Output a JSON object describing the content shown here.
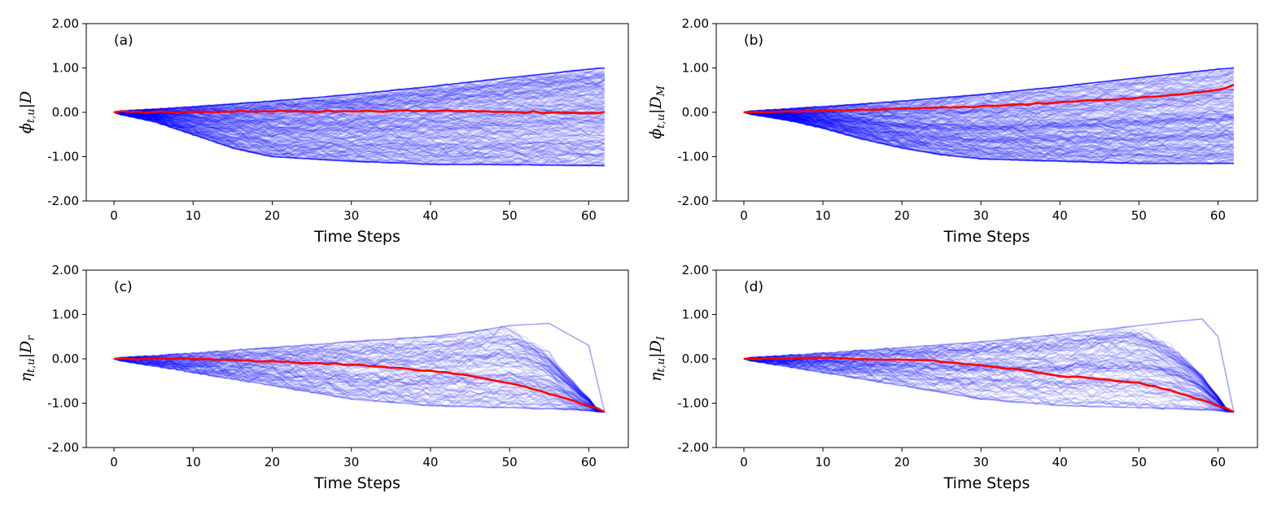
{
  "chart_data": [
    {
      "type": "line",
      "panel": "(a)",
      "xlabel": "Time Steps",
      "ylabel": {
        "symbol": "ϕ",
        "sub": "t,u",
        "given": "D",
        "given_sub": ""
      },
      "xlim": [
        -3.5,
        65
      ],
      "ylim": [
        -2,
        2
      ],
      "xticks": [
        "0",
        "10",
        "20",
        "30",
        "40",
        "50",
        "60"
      ],
      "yticks": [
        "2.00",
        "1.00",
        "0.00",
        "-1.00",
        "-2.00"
      ],
      "series": [
        {
          "name": "sample trajectories (blue band upper bound)",
          "color": "#0000ff",
          "x": [
            0,
            10,
            20,
            30,
            40,
            50,
            60,
            62
          ],
          "values": [
            0,
            0.12,
            0.25,
            0.4,
            0.58,
            0.78,
            0.97,
            1.0
          ]
        },
        {
          "name": "sample trajectories (blue band lower bound)",
          "color": "#0000ff",
          "x": [
            0,
            5,
            10,
            15,
            20,
            25,
            30,
            40,
            50,
            62
          ],
          "values": [
            0,
            -0.2,
            -0.5,
            -0.8,
            -1.0,
            -1.05,
            -1.1,
            -1.17,
            -1.18,
            -1.2
          ]
        },
        {
          "name": "mean",
          "color": "#ff0000",
          "x": [
            0,
            10,
            20,
            30,
            35,
            40,
            50,
            56,
            60,
            62
          ],
          "values": [
            0,
            0.01,
            0.02,
            0.02,
            0.03,
            0.03,
            0.02,
            -0.02,
            -0.03,
            0.01
          ]
        }
      ]
    },
    {
      "type": "line",
      "panel": "(b)",
      "xlabel": "Time Steps",
      "ylabel": {
        "symbol": "ϕ",
        "sub": "t,u",
        "given": "D",
        "given_sub": "M"
      },
      "xlim": [
        -3.5,
        65
      ],
      "ylim": [
        -2,
        2
      ],
      "xticks": [
        "0",
        "10",
        "20",
        "30",
        "40",
        "50",
        "60"
      ],
      "yticks": [
        "2.00",
        "1.00",
        "0.00",
        "-1.00",
        "-2.00"
      ],
      "series": [
        {
          "name": "sample trajectories (blue band upper bound)",
          "color": "#0000ff",
          "x": [
            0,
            10,
            20,
            30,
            40,
            50,
            60,
            62
          ],
          "values": [
            0,
            0.12,
            0.25,
            0.4,
            0.58,
            0.78,
            0.97,
            1.0
          ]
        },
        {
          "name": "sample trajectories (blue band lower bound)",
          "color": "#0000ff",
          "x": [
            0,
            5,
            10,
            15,
            20,
            25,
            30,
            40,
            50,
            62
          ],
          "values": [
            0,
            -0.15,
            -0.35,
            -0.6,
            -0.8,
            -0.95,
            -1.05,
            -1.1,
            -1.15,
            -1.15
          ]
        },
        {
          "name": "mean",
          "color": "#ff0000",
          "x": [
            0,
            10,
            20,
            30,
            40,
            50,
            55,
            60,
            62
          ],
          "values": [
            0,
            0.03,
            0.08,
            0.13,
            0.22,
            0.32,
            0.4,
            0.5,
            0.62
          ]
        }
      ]
    },
    {
      "type": "line",
      "panel": "(c)",
      "xlabel": "Time Steps",
      "ylabel": {
        "symbol": "η",
        "sub": "t,u",
        "given": "D",
        "given_sub": "r"
      },
      "xlim": [
        -3.5,
        65
      ],
      "ylim": [
        -2,
        2
      ],
      "xticks": [
        "0",
        "10",
        "20",
        "30",
        "40",
        "50",
        "60"
      ],
      "yticks": [
        "2.00",
        "1.00",
        "0.00",
        "-1.00",
        "-2.00"
      ],
      "series": [
        {
          "name": "sample trajectories (upper envelope)",
          "color": "#0000ff",
          "x": [
            0,
            10,
            20,
            30,
            40,
            45,
            50,
            55,
            60,
            62
          ],
          "values": [
            0,
            0.12,
            0.25,
            0.38,
            0.5,
            0.6,
            0.75,
            0.8,
            0.3,
            -1.2
          ]
        },
        {
          "name": "sample trajectories (lower envelope)",
          "color": "#0000ff",
          "x": [
            0,
            10,
            20,
            30,
            40,
            50,
            60,
            62
          ],
          "values": [
            0,
            -0.3,
            -0.6,
            -0.9,
            -1.05,
            -1.1,
            -1.15,
            -1.2
          ]
        },
        {
          "name": "mean",
          "color": "#ff0000",
          "x": [
            0,
            10,
            20,
            30,
            35,
            40,
            45,
            50,
            55,
            60,
            62
          ],
          "values": [
            0,
            0.0,
            -0.05,
            -0.13,
            -0.2,
            -0.27,
            -0.38,
            -0.55,
            -0.78,
            -1.05,
            -1.2
          ]
        }
      ]
    },
    {
      "type": "line",
      "panel": "(d)",
      "xlabel": "Time Steps",
      "ylabel": {
        "symbol": "η",
        "sub": "t,u",
        "given": "D",
        "given_sub": "I"
      },
      "xlim": [
        -3.5,
        65
      ],
      "ylim": [
        -2,
        2
      ],
      "xticks": [
        "0",
        "10",
        "20",
        "30",
        "40",
        "50",
        "60"
      ],
      "yticks": [
        "2.00",
        "1.00",
        "0.00",
        "-1.00",
        "-2.00"
      ],
      "series": [
        {
          "name": "sample trajectories (upper envelope)",
          "color": "#0000ff",
          "x": [
            0,
            10,
            20,
            30,
            40,
            50,
            55,
            58,
            60,
            62
          ],
          "values": [
            0,
            0.12,
            0.25,
            0.38,
            0.55,
            0.75,
            0.85,
            0.9,
            0.5,
            -1.2
          ]
        },
        {
          "name": "sample trajectories (lower envelope)",
          "color": "#0000ff",
          "x": [
            0,
            10,
            20,
            30,
            40,
            50,
            60,
            62
          ],
          "values": [
            0,
            -0.3,
            -0.6,
            -0.9,
            -1.05,
            -1.1,
            -1.15,
            -1.2
          ]
        },
        {
          "name": "mean",
          "color": "#ff0000",
          "x": [
            0,
            10,
            20,
            23,
            30,
            35,
            40,
            45,
            50,
            55,
            60,
            62
          ],
          "values": [
            0,
            0.02,
            -0.02,
            -0.03,
            -0.15,
            -0.25,
            -0.38,
            -0.45,
            -0.55,
            -0.75,
            -1.05,
            -1.2
          ]
        }
      ]
    }
  ]
}
